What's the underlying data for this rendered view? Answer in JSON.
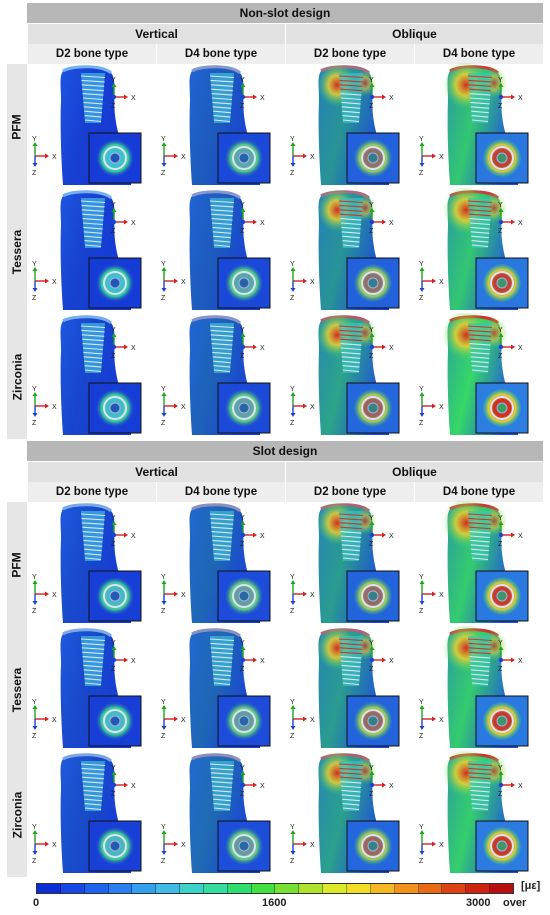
{
  "sections": [
    {
      "title": "Non-slot design",
      "groups": [
        "Vertical",
        "Oblique"
      ],
      "columns": [
        "D2 bone type",
        "D4 bone type",
        "D2 bone type",
        "D4 bone type"
      ],
      "rows": [
        "PFM",
        "Tessera",
        "Zirconia"
      ],
      "stress": [
        [
          0.05,
          0.22,
          0.55,
          0.85
        ],
        [
          0.06,
          0.22,
          0.55,
          0.85
        ],
        [
          0.08,
          0.25,
          0.65,
          0.95
        ]
      ]
    },
    {
      "title": "Slot design",
      "groups": [
        "Vertical",
        "Oblique"
      ],
      "columns": [
        "D2 bone type",
        "D4 bone type",
        "D2 bone type",
        "D4 bone type"
      ],
      "rows": [
        "PFM",
        "Tessera",
        "Zirconia"
      ],
      "stress": [
        [
          0.1,
          0.28,
          0.6,
          0.88
        ],
        [
          0.1,
          0.28,
          0.6,
          0.88
        ],
        [
          0.12,
          0.3,
          0.62,
          0.9
        ]
      ]
    }
  ],
  "axes": {
    "x": "X",
    "y": "Y",
    "z": "Z"
  },
  "legend": {
    "unit": "[με]",
    "ticks": [
      "0",
      "1600",
      "3000",
      "over"
    ],
    "colors": [
      "#0a2dd6",
      "#1748e6",
      "#1f64ee",
      "#2a80f2",
      "#35a0f0",
      "#3fbbe6",
      "#3ed3c8",
      "#35dca0",
      "#2fdf6e",
      "#43e041",
      "#78e032",
      "#aee52c",
      "#dcea2a",
      "#f4dc26",
      "#f6b822",
      "#f2921c",
      "#ea6a16",
      "#dd4412",
      "#cc2410",
      "#b81010"
    ]
  },
  "colors": {
    "low": "#1537d6",
    "mid": "#38e060",
    "high": "#d8281a"
  }
}
